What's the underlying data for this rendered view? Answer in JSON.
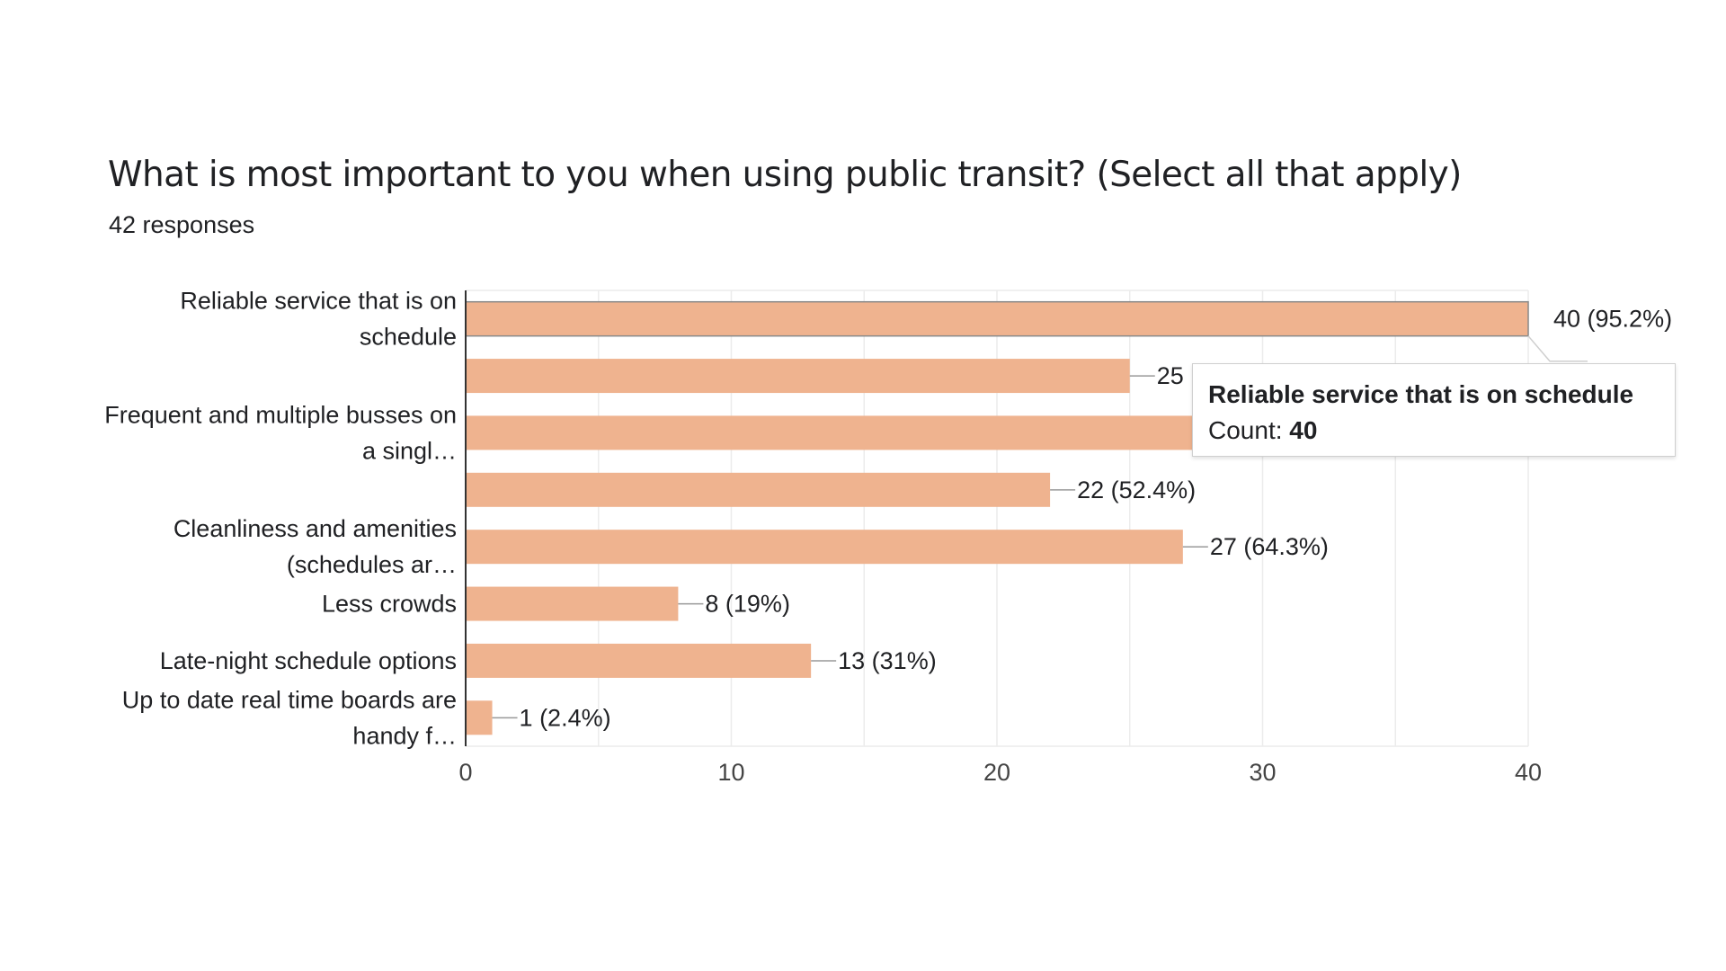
{
  "header": {
    "title": "What is most important to you when using public transit? (Select all that apply)",
    "responses": "42 responses"
  },
  "tooltip": {
    "title": "Reliable service that is on schedule",
    "count_label": "Count:",
    "count_value": "40"
  },
  "colors": {
    "bar": "#efb38f",
    "axis": "#333333",
    "grid": "#ececec",
    "leader": "#999999"
  },
  "chart_data": {
    "type": "bar",
    "orientation": "horizontal",
    "title": "What is most important to you when using public transit? (Select all that apply)",
    "subtitle": "42 responses",
    "categories": [
      [
        "Reliable service that is on",
        "schedule"
      ],
      [],
      [
        "Frequent and multiple busses on",
        "a singl…"
      ],
      [],
      [
        "Cleanliness and amenities",
        "(schedules ar…"
      ],
      [
        "Less crowds"
      ],
      [
        "Late-night schedule options"
      ],
      [
        "Up to date real time boards are",
        "handy f…"
      ]
    ],
    "values": [
      40,
      25,
      28,
      22,
      27,
      8,
      13,
      1
    ],
    "data_labels": [
      "40 (95.2%)",
      "25",
      "",
      "22 (52.4%)",
      "27 (64.3%)",
      "8 (19%)",
      "13 (31%)",
      "1 (2.4%)"
    ],
    "xlim": [
      0,
      40
    ],
    "xticks": [
      0,
      10,
      20,
      30,
      40
    ],
    "grid": true,
    "highlighted_index": 0
  }
}
